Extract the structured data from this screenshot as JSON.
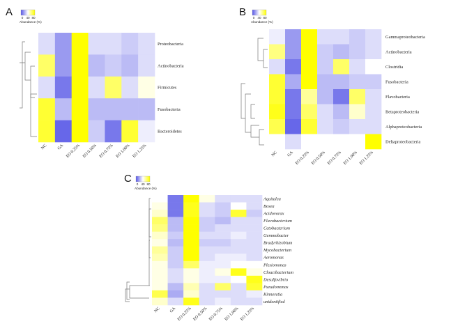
{
  "figure": {
    "legend": {
      "title": "Abundance (%)",
      "ticks": [
        "0",
        "40",
        "80"
      ]
    }
  },
  "chart_data": [
    {
      "type": "heatmap",
      "panel": "A",
      "title": "",
      "columns": [
        "NC",
        "GA",
        "EO 0.25%",
        "EO 0.50%",
        "EO 0.75%",
        "EO 1.00%",
        "EO 1.25%"
      ],
      "rows": [
        "Proteobacteria",
        "Actinobacteria",
        "Firmicutes",
        "Fusobacteria",
        "Bacteroidetes"
      ],
      "values": [
        [
          0.4,
          0.2,
          1.0,
          0.4,
          0.4,
          0.35,
          0.4
        ],
        [
          0.8,
          0.2,
          1.0,
          0.3,
          0.35,
          0.3,
          0.4
        ],
        [
          0.4,
          0.1,
          1.0,
          0.4,
          0.8,
          0.4,
          0.55
        ],
        [
          0.9,
          0.3,
          1.0,
          0.3,
          0.3,
          0.3,
          0.3
        ],
        [
          0.9,
          0.05,
          1.0,
          0.35,
          0.1,
          0.9,
          0.45
        ]
      ],
      "color_scale": {
        "low": "#5656e6",
        "mid": "#ffffff",
        "high": "#ffff00",
        "range": [
          0,
          80
        ]
      }
    },
    {
      "type": "heatmap",
      "panel": "B",
      "title": "",
      "columns": [
        "NC",
        "GA",
        "EO 0.25%",
        "EO 0.50%",
        "EO 0.75%",
        "EO 1.00%",
        "EO 1.25%"
      ],
      "rows": [
        "Gammaproteobacteria",
        "Actinobacteria",
        "Clostridia",
        "Fusobacteria",
        "Flavobacteria",
        "Betaproteobacteria",
        "Alphaproteobacteria",
        "Deltaproteobacteria"
      ],
      "values": [
        [
          0.45,
          0.2,
          1.0,
          0.4,
          0.4,
          0.35,
          0.4
        ],
        [
          0.75,
          0.2,
          1.0,
          0.35,
          0.3,
          0.35,
          0.4
        ],
        [
          0.4,
          0.1,
          1.0,
          0.35,
          0.8,
          0.4,
          0.5
        ],
        [
          0.9,
          0.25,
          1.0,
          0.3,
          0.3,
          0.35,
          0.35
        ],
        [
          0.9,
          0.1,
          0.7,
          0.3,
          0.1,
          0.8,
          0.4
        ],
        [
          0.95,
          0.1,
          0.8,
          0.4,
          0.3,
          0.6,
          0.4
        ],
        [
          0.85,
          0.05,
          0.9,
          0.4,
          0.35,
          0.4,
          0.4
        ],
        [
          0.5,
          0.4,
          0.5,
          0.5,
          0.5,
          0.5,
          1.0
        ]
      ],
      "color_scale": {
        "low": "#5656e6",
        "mid": "#ffffff",
        "high": "#ffff00",
        "range": [
          0,
          80
        ]
      }
    },
    {
      "type": "heatmap",
      "panel": "C",
      "title": "",
      "columns": [
        "NC",
        "GA",
        "EO 0.25%",
        "EO 0.50%",
        "EO 0.75%",
        "EO 1.00%",
        "EO 1.25%"
      ],
      "rows": [
        "Aquitalea",
        "Bosea",
        "Acidovorax",
        "Flavobacterium",
        "Cetobacterium",
        "Gemmobacter",
        "Bradyrhizobium",
        "Mycobacterium",
        "Aeromonas",
        "Plesiomonas",
        "Cloacibacterium",
        "Desulfovibrio",
        "Pseudomonas",
        "Kinneretia",
        "unidentified"
      ],
      "values": [
        [
          0.5,
          0.1,
          1.0,
          0.55,
          0.4,
          0.4,
          0.4
        ],
        [
          0.55,
          0.1,
          0.95,
          0.4,
          0.35,
          0.5,
          0.4
        ],
        [
          0.6,
          0.1,
          0.95,
          0.4,
          0.35,
          0.9,
          0.35
        ],
        [
          0.8,
          0.3,
          1.0,
          0.35,
          0.3,
          0.4,
          0.4
        ],
        [
          0.75,
          0.3,
          1.0,
          0.35,
          0.4,
          0.4,
          0.4
        ],
        [
          0.6,
          0.35,
          1.0,
          0.4,
          0.4,
          0.45,
          0.4
        ],
        [
          0.55,
          0.3,
          1.0,
          0.35,
          0.35,
          0.4,
          0.4
        ],
        [
          0.7,
          0.35,
          1.0,
          0.4,
          0.4,
          0.4,
          0.4
        ],
        [
          0.65,
          0.35,
          1.0,
          0.4,
          0.45,
          0.45,
          0.4
        ],
        [
          0.55,
          0.35,
          0.8,
          0.45,
          0.45,
          0.5,
          0.5
        ],
        [
          0.55,
          0.4,
          0.55,
          0.45,
          0.55,
          0.95,
          0.55
        ],
        [
          0.55,
          0.4,
          0.55,
          0.45,
          0.45,
          0.5,
          0.95
        ],
        [
          0.55,
          0.3,
          0.65,
          0.4,
          0.8,
          0.4,
          0.9
        ],
        [
          0.85,
          0.25,
          0.6,
          0.4,
          0.4,
          0.4,
          0.45
        ],
        [
          0.6,
          0.4,
          0.95,
          0.4,
          0.45,
          0.4,
          0.4
        ]
      ],
      "color_scale": {
        "low": "#5656e6",
        "mid": "#ffffff",
        "high": "#ffff00",
        "range": [
          0,
          80
        ]
      }
    }
  ]
}
